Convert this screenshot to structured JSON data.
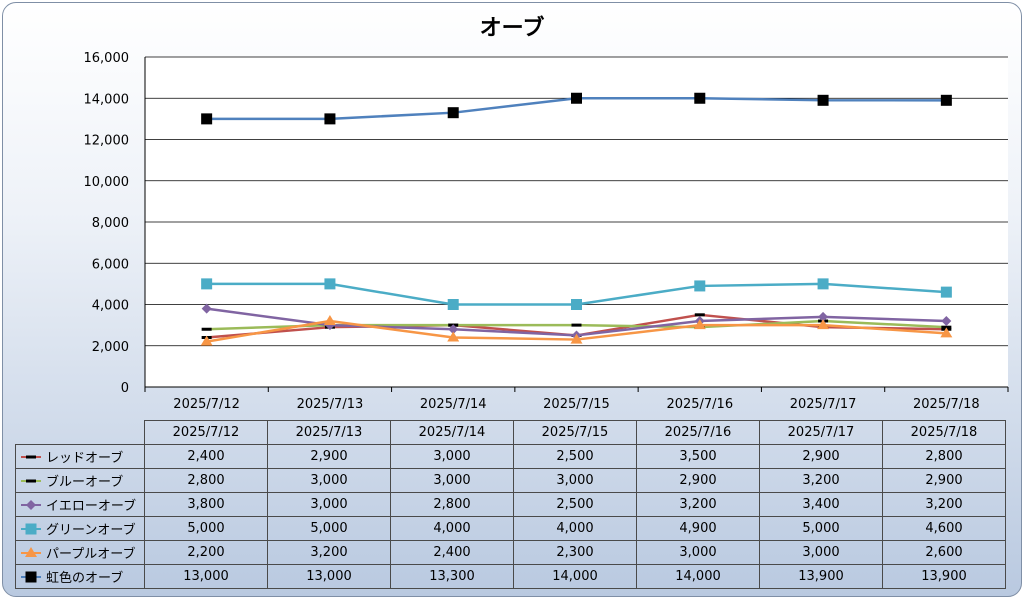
{
  "chart_data": {
    "type": "line",
    "title": "オーブ",
    "categories": [
      "2025/7/12",
      "2025/7/13",
      "2025/7/14",
      "2025/7/15",
      "2025/7/16",
      "2025/7/17",
      "2025/7/18"
    ],
    "ylim": [
      0,
      16000
    ],
    "yticks": [
      "0",
      "2,000",
      "4,000",
      "6,000",
      "8,000",
      "10,000",
      "12,000",
      "14,000",
      "16,000"
    ],
    "grid": true,
    "legend": "data-table",
    "series": [
      {
        "name": "レッドオーブ",
        "color": "#c0504d",
        "marker": "dash",
        "values": [
          2400,
          2900,
          3000,
          2500,
          3500,
          2900,
          2800
        ],
        "labels": [
          "2,400",
          "2,900",
          "3,000",
          "2,500",
          "3,500",
          "2,900",
          "2,800"
        ]
      },
      {
        "name": "ブルーオーブ",
        "color": "#9bbb59",
        "marker": "dash",
        "values": [
          2800,
          3000,
          3000,
          3000,
          2900,
          3200,
          2900
        ],
        "labels": [
          "2,800",
          "3,000",
          "3,000",
          "3,000",
          "2,900",
          "3,200",
          "2,900"
        ]
      },
      {
        "name": "イエローオーブ",
        "color": "#8064a2",
        "marker": "diamond",
        "values": [
          3800,
          3000,
          2800,
          2500,
          3200,
          3400,
          3200
        ],
        "labels": [
          "3,800",
          "3,000",
          "2,800",
          "2,500",
          "3,200",
          "3,400",
          "3,200"
        ]
      },
      {
        "name": "グリーンオーブ",
        "color": "#4bacc6",
        "marker": "square",
        "values": [
          5000,
          5000,
          4000,
          4000,
          4900,
          5000,
          4600
        ],
        "labels": [
          "5,000",
          "5,000",
          "4,000",
          "4,000",
          "4,900",
          "5,000",
          "4,600"
        ]
      },
      {
        "name": "パープルオーブ",
        "color": "#f79646",
        "marker": "triangle",
        "values": [
          2200,
          3200,
          2400,
          2300,
          3000,
          3000,
          2600
        ],
        "labels": [
          "2,200",
          "3,200",
          "2,400",
          "2,300",
          "3,000",
          "3,000",
          "2,600"
        ]
      },
      {
        "name": "虹色のオーブ",
        "color": "#4f81bd",
        "marker": "blacksquare",
        "values": [
          13000,
          13000,
          13300,
          14000,
          14000,
          13900,
          13900
        ],
        "labels": [
          "13,000",
          "13,000",
          "13,300",
          "14,000",
          "14,000",
          "13,900",
          "13,900"
        ]
      }
    ]
  }
}
